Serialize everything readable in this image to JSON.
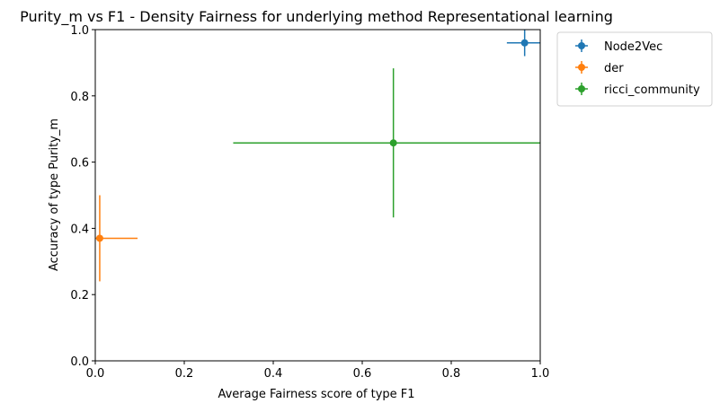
{
  "chart_data": {
    "type": "scatter",
    "title": "Purity_m vs F1 - Density Fairness for underlying method Representational learning",
    "xlabel": "Average Fairness score of type F1",
    "ylabel": "Accuracy of type Purity_m",
    "xlim": [
      0.0,
      1.0
    ],
    "ylim": [
      0.0,
      1.0
    ],
    "xticks": [
      "0.0",
      "0.2",
      "0.4",
      "0.6",
      "0.8",
      "1.0"
    ],
    "yticks": [
      "0.0",
      "0.2",
      "0.4",
      "0.6",
      "0.8",
      "1.0"
    ],
    "xtick_values": [
      0.0,
      0.2,
      0.4,
      0.6,
      0.8,
      1.0
    ],
    "ytick_values": [
      0.0,
      0.2,
      0.4,
      0.6,
      0.8,
      1.0
    ],
    "grid": false,
    "legend_position": "outside-top-right",
    "series": [
      {
        "name": "Node2Vec",
        "color": "#1f77b4",
        "x": 0.965,
        "y": 0.96,
        "xerr": [
          0.04,
          0.04
        ],
        "yerr": [
          0.04,
          0.04
        ]
      },
      {
        "name": "der",
        "color": "#ff7f0e",
        "x": 0.01,
        "y": 0.37,
        "xerr": [
          0.01,
          0.085
        ],
        "yerr": [
          0.13,
          0.13
        ]
      },
      {
        "name": "ricci_community",
        "color": "#2ca02c",
        "x": 0.67,
        "y": 0.658,
        "xerr": [
          0.36,
          0.36
        ],
        "yerr": [
          0.225,
          0.225
        ]
      }
    ]
  }
}
